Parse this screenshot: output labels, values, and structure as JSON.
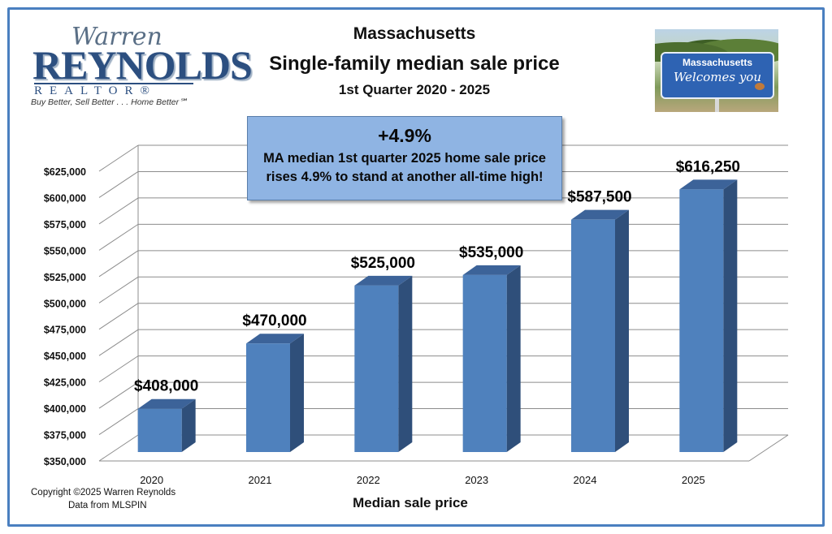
{
  "logo": {
    "script_text": "Warren",
    "name_text": "REYNOLDS",
    "sub_text": "REALTOR®",
    "tagline": "Buy Better, Sell Better . . . Home Better℠"
  },
  "sign": {
    "state_text": "Massachusetts",
    "welcome_text": "Welcomes you"
  },
  "callout": {
    "headline": "+4.9%",
    "text": "MA median 1st quarter 2025 home sale price rises 4.9% to stand at another all-time high!"
  },
  "footer": {
    "copyright": "Copyright ©2025 Warren Reynolds",
    "source": "Data from MLSPIN"
  },
  "colors": {
    "bar_front": "#4f81bd",
    "bar_side": "#2f4f7a",
    "bar_top": "#3c6399",
    "grid": "#8c8c8c",
    "frame": "#4a7fc0"
  },
  "chart_data": {
    "type": "bar",
    "title": "Massachusetts",
    "subtitle": "Single-family median sale price",
    "subtitle2": "1st Quarter 2020 - 2025",
    "xlabel": "Median sale price",
    "ylabel": "",
    "categories": [
      "2020",
      "2021",
      "2022",
      "2023",
      "2024",
      "2025"
    ],
    "values": [
      408000,
      470000,
      525000,
      535000,
      587500,
      616250
    ],
    "data_labels": [
      "$408,000",
      "$470,000",
      "$525,000",
      "$535,000",
      "$587,500",
      "$616,250"
    ],
    "ylim": [
      350000,
      625000
    ],
    "yticks": [
      350000,
      375000,
      400000,
      425000,
      450000,
      475000,
      500000,
      525000,
      550000,
      575000,
      600000,
      625000
    ],
    "ytick_labels": [
      "$350,000",
      "$375,000",
      "$400,000",
      "$425,000",
      "$450,000",
      "$475,000",
      "$500,000",
      "$525,000",
      "$550,000",
      "$575,000",
      "$600,000",
      "$625,000"
    ],
    "grid": true,
    "legend": "none",
    "style": "3d-column"
  }
}
